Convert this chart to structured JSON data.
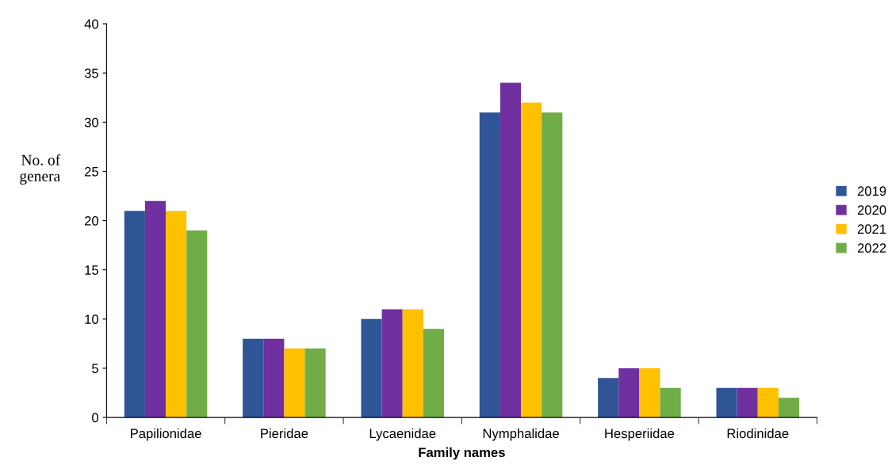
{
  "chart_data": {
    "type": "bar",
    "xlabel": "Family names",
    "ylabel": "No. of\ngenera",
    "categories": [
      "Papilionidae",
      "Pieridae",
      "Lycaenidae",
      "Nymphalidae",
      "Hesperiidae",
      "Riodinidae"
    ],
    "series": [
      {
        "name": "2019",
        "color": "#2f5597",
        "values": [
          21,
          8,
          10,
          31,
          4,
          3
        ]
      },
      {
        "name": "2020",
        "color": "#7030a0",
        "values": [
          22,
          8,
          11,
          34,
          5,
          3
        ]
      },
      {
        "name": "2021",
        "color": "#ffc000",
        "values": [
          21,
          7,
          11,
          32,
          5,
          3
        ]
      },
      {
        "name": "2022",
        "color": "#70ad47",
        "values": [
          19,
          7,
          9,
          31,
          3,
          2
        ]
      }
    ],
    "ylim": [
      0,
      40
    ],
    "yticks": [
      0,
      5,
      10,
      15,
      20,
      25,
      30,
      35,
      40
    ],
    "grid": false,
    "legend": "right"
  }
}
